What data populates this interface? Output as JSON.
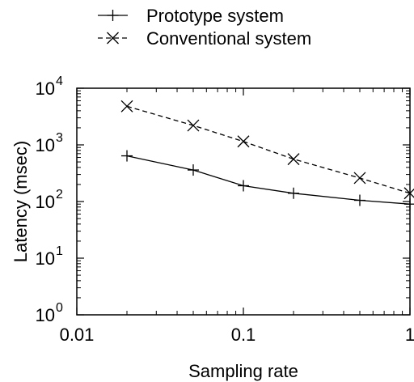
{
  "chart_data": {
    "type": "line",
    "title": "",
    "xlabel": "Sampling rate",
    "ylabel": "Latency (msec)",
    "x_scale": "log",
    "y_scale": "log",
    "xlim": [
      0.01,
      1
    ],
    "ylim": [
      1,
      10000
    ],
    "grid": false,
    "legend_position": "top",
    "x_ticks": [
      {
        "value": 0.01,
        "label": "0.01"
      },
      {
        "value": 0.1,
        "label": "0.1"
      },
      {
        "value": 1,
        "label": "1"
      }
    ],
    "y_ticks": [
      {
        "value": 1,
        "base": "10",
        "exp": "0"
      },
      {
        "value": 10,
        "base": "10",
        "exp": "1"
      },
      {
        "value": 100,
        "base": "10",
        "exp": "2"
      },
      {
        "value": 1000,
        "base": "10",
        "exp": "3"
      },
      {
        "value": 10000,
        "base": "10",
        "exp": "4"
      }
    ],
    "series": [
      {
        "name": "Prototype system",
        "marker": "plus",
        "line_style": "solid",
        "color": "#000000",
        "x": [
          0.02,
          0.05,
          0.1,
          0.2,
          0.5,
          1
        ],
        "y": [
          640,
          360,
          190,
          140,
          105,
          90
        ]
      },
      {
        "name": "Conventional system",
        "marker": "cross",
        "line_style": "dashed",
        "color": "#000000",
        "x": [
          0.02,
          0.05,
          0.1,
          0.2,
          0.5,
          1
        ],
        "y": [
          4800,
          2200,
          1150,
          560,
          260,
          140
        ]
      }
    ]
  }
}
